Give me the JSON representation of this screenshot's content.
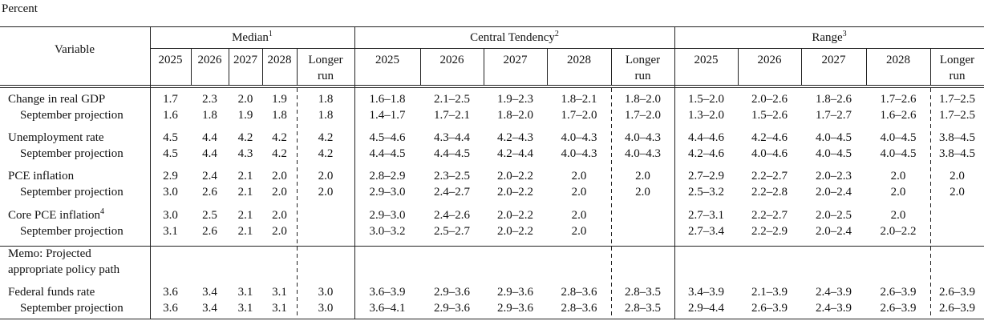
{
  "unit": "Percent",
  "header": {
    "variable": "Variable",
    "groups": [
      {
        "label": "Median",
        "note": "1"
      },
      {
        "label": "Central Tendency",
        "note": "2"
      },
      {
        "label": "Range",
        "note": "3"
      }
    ],
    "years": [
      "2025",
      "2026",
      "2027",
      "2028",
      "Longer run"
    ]
  },
  "rows": [
    {
      "label": "Change in real GDP",
      "median": [
        "1.7",
        "2.3",
        "2.0",
        "1.9",
        "1.8"
      ],
      "central_tendency": [
        "1.6–1.8",
        "2.1–2.5",
        "1.9–2.3",
        "1.8–2.1",
        "1.8–2.0"
      ],
      "range": [
        "1.5–2.0",
        "2.0–2.6",
        "1.8–2.6",
        "1.7–2.6",
        "1.7–2.5"
      ]
    },
    {
      "label": "September projection",
      "median": [
        "1.6",
        "1.8",
        "1.9",
        "1.8",
        "1.8"
      ],
      "central_tendency": [
        "1.4–1.7",
        "1.7–2.1",
        "1.8–2.0",
        "1.7–2.0",
        "1.7–2.0"
      ],
      "range": [
        "1.3–2.0",
        "1.5–2.6",
        "1.7–2.7",
        "1.6–2.6",
        "1.7–2.5"
      ]
    },
    {
      "label": "Unemployment rate",
      "median": [
        "4.5",
        "4.4",
        "4.2",
        "4.2",
        "4.2"
      ],
      "central_tendency": [
        "4.5–4.6",
        "4.3–4.4",
        "4.2–4.3",
        "4.0–4.3",
        "4.0–4.3"
      ],
      "range": [
        "4.4–4.6",
        "4.2–4.6",
        "4.0–4.5",
        "4.0–4.5",
        "3.8–4.5"
      ]
    },
    {
      "label": "September projection",
      "median": [
        "4.5",
        "4.4",
        "4.3",
        "4.2",
        "4.2"
      ],
      "central_tendency": [
        "4.4–4.5",
        "4.4–4.5",
        "4.2–4.4",
        "4.0–4.3",
        "4.0–4.3"
      ],
      "range": [
        "4.2–4.6",
        "4.0–4.6",
        "4.0–4.5",
        "4.0–4.5",
        "3.8–4.5"
      ]
    },
    {
      "label": "PCE inflation",
      "median": [
        "2.9",
        "2.4",
        "2.1",
        "2.0",
        "2.0"
      ],
      "central_tendency": [
        "2.8–2.9",
        "2.3–2.5",
        "2.0–2.2",
        "2.0",
        "2.0"
      ],
      "range": [
        "2.7–2.9",
        "2.2–2.7",
        "2.0–2.3",
        "2.0",
        "2.0"
      ]
    },
    {
      "label": "September projection",
      "median": [
        "3.0",
        "2.6",
        "2.1",
        "2.0",
        "2.0"
      ],
      "central_tendency": [
        "2.9–3.0",
        "2.4–2.7",
        "2.0–2.2",
        "2.0",
        "2.0"
      ],
      "range": [
        "2.5–3.2",
        "2.2–2.8",
        "2.0–2.4",
        "2.0",
        "2.0"
      ]
    },
    {
      "label": "Core PCE inflation",
      "note": "4",
      "median": [
        "3.0",
        "2.5",
        "2.1",
        "2.0"
      ],
      "central_tendency": [
        "2.9–3.0",
        "2.4–2.6",
        "2.0–2.2",
        "2.0"
      ],
      "range": [
        "2.7–3.1",
        "2.2–2.7",
        "2.0–2.5",
        "2.0"
      ]
    },
    {
      "label": "September projection",
      "median": [
        "3.1",
        "2.6",
        "2.1",
        "2.0"
      ],
      "central_tendency": [
        "3.0–3.2",
        "2.5–2.7",
        "2.0–2.2",
        "2.0"
      ],
      "range": [
        "2.7–3.4",
        "2.2–2.9",
        "2.0–2.4",
        "2.0–2.2"
      ]
    },
    {
      "label": "Memo: Projected appropriate policy path"
    },
    {
      "label": "Federal funds rate",
      "median": [
        "3.6",
        "3.4",
        "3.1",
        "3.1",
        "3.0"
      ],
      "central_tendency": [
        "3.6–3.9",
        "2.9–3.6",
        "2.9–3.6",
        "2.8–3.6",
        "2.8–3.5"
      ],
      "range": [
        "3.4–3.9",
        "2.1–3.9",
        "2.4–3.9",
        "2.6–3.9",
        "2.6–3.9"
      ]
    },
    {
      "label": "September projection",
      "median": [
        "3.6",
        "3.4",
        "3.1",
        "3.1",
        "3.0"
      ],
      "central_tendency": [
        "3.6–4.1",
        "2.9–3.6",
        "2.9–3.6",
        "2.8–3.6",
        "2.8–3.5"
      ],
      "range": [
        "2.9–4.4",
        "2.6–3.9",
        "2.4–3.9",
        "2.6–3.9",
        "2.6–3.9"
      ]
    }
  ]
}
